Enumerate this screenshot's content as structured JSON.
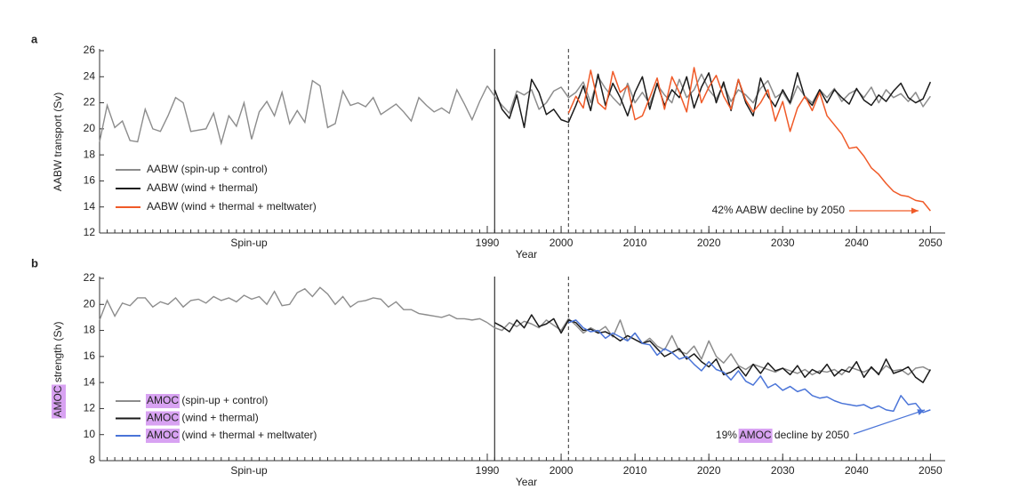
{
  "chart_data": [
    {
      "type": "line",
      "panel_label": "a",
      "ylabel": "AABW transport (Sv)",
      "xlabel": "Year",
      "spinup_label": "Spin-up",
      "x": [
        1991,
        1992,
        1993,
        1994,
        1995,
        1996,
        1997,
        1998,
        1999,
        2000,
        2001,
        2002,
        2003,
        2004,
        2005,
        2006,
        2007,
        2008,
        2009,
        2010,
        2011,
        2012,
        2013,
        2014,
        2015,
        2016,
        2017,
        2018,
        2019,
        2020,
        2021,
        2022,
        2023,
        2024,
        2025,
        2026,
        2027,
        2028,
        2029,
        2030,
        2031,
        2032,
        2033,
        2034,
        2035,
        2036,
        2037,
        2038,
        2039,
        2040,
        2041,
        2042,
        2043,
        2044,
        2045,
        2046,
        2047,
        2048,
        2049,
        2050
      ],
      "xlim": [
        1990,
        2052
      ],
      "xticks": [
        1990,
        2000,
        2010,
        2020,
        2030,
        2040,
        2050
      ],
      "ylim": [
        12,
        26
      ],
      "yticks": [
        12,
        14,
        16,
        18,
        20,
        22,
        24,
        26
      ],
      "vlines": [
        {
          "value": 1991,
          "style": "solid"
        },
        {
          "value": 2001,
          "style": "dashed"
        }
      ],
      "series": [
        {
          "name": "AABW (spin-up + control)",
          "color": "#8c8c8c",
          "spinup_values": [
            19.0,
            21.8,
            20.1,
            20.6,
            19.1,
            19.0,
            21.5,
            20.0,
            19.8,
            21.0,
            22.4,
            22.0,
            19.8,
            19.9,
            20.0,
            21.2,
            18.9,
            21.0,
            20.2,
            22.0,
            19.2,
            21.3,
            22.1,
            21.0,
            22.8,
            20.4,
            21.4,
            20.5,
            23.7,
            23.3,
            20.1,
            20.4,
            22.9,
            21.8,
            22.0,
            21.7,
            22.4,
            21.1,
            21.5,
            21.9,
            21.3,
            20.6,
            22.4,
            21.8,
            21.3,
            21.6,
            21.2,
            23.0,
            21.9,
            20.7,
            22.1,
            23.3
          ],
          "values": [
            22.5,
            21.8,
            21.2,
            22.9,
            22.6,
            23.0,
            21.5,
            22.0,
            22.9,
            23.2,
            22.4,
            22.8,
            23.6,
            22.0,
            24.0,
            23.1,
            22.4,
            21.8,
            23.5,
            22.0,
            22.8,
            21.9,
            23.4,
            22.6,
            22.0,
            23.8,
            22.4,
            23.0,
            24.2,
            23.0,
            22.3,
            23.4,
            22.1,
            23.0,
            22.6,
            22.0,
            23.1,
            23.7,
            22.4,
            22.8,
            21.9,
            23.3,
            22.5,
            22.0,
            23.0,
            22.4,
            23.1,
            22.1,
            22.7,
            23.0,
            22.4,
            23.2,
            22.0,
            23.0,
            22.4,
            22.7,
            22.1,
            22.8,
            21.7,
            22.5
          ]
        },
        {
          "name": "AABW (wind + thermal)",
          "color": "#1a1a1a",
          "values": [
            23.0,
            21.5,
            20.8,
            22.6,
            20.1,
            23.8,
            22.8,
            21.1,
            21.5,
            20.7,
            20.5,
            21.8,
            23.3,
            21.4,
            24.2,
            21.8,
            23.5,
            22.4,
            21.0,
            22.8,
            24.0,
            21.5,
            23.5,
            21.8,
            23.0,
            22.4,
            24.0,
            21.6,
            23.2,
            24.3,
            22.0,
            23.6,
            21.4,
            23.8,
            22.0,
            21.0,
            23.9,
            22.5,
            21.7,
            23.0,
            22.0,
            24.3,
            22.4,
            21.8,
            23.0,
            22.0,
            23.0,
            22.4,
            21.9,
            23.1,
            22.2,
            21.8,
            22.6,
            22.1,
            22.9,
            23.5,
            22.4,
            22.0,
            22.3,
            23.6
          ]
        },
        {
          "name": "AABW (wind + thermal + meltwater)",
          "color": "#f05a28",
          "values": [
            null,
            null,
            null,
            null,
            null,
            null,
            null,
            null,
            null,
            null,
            21.2,
            22.5,
            21.6,
            24.5,
            22.0,
            21.5,
            24.4,
            22.8,
            23.3,
            20.7,
            21.0,
            22.4,
            23.9,
            21.5,
            24.0,
            22.8,
            21.3,
            24.7,
            22.0,
            23.2,
            24.1,
            22.5,
            21.5,
            23.8,
            22.2,
            21.3,
            22.0,
            23.0,
            20.6,
            22.1,
            19.8,
            21.6,
            22.5,
            21.4,
            22.8,
            21.0,
            20.3,
            19.6,
            18.5,
            18.6,
            17.9,
            17.0,
            16.5,
            15.8,
            15.2,
            14.9,
            14.8,
            14.5,
            14.4,
            13.7
          ]
        }
      ],
      "annotation": {
        "text": "42% AABW decline by 2050",
        "color": "#f05a28"
      }
    },
    {
      "type": "line",
      "panel_label": "b",
      "ylabel": "AMOC strength (Sv)",
      "xlabel": "Year",
      "spinup_label": "Spin-up",
      "highlight": "AMOC",
      "highlight_color": "#d8a2f2",
      "x": [
        1991,
        1992,
        1993,
        1994,
        1995,
        1996,
        1997,
        1998,
        1999,
        2000,
        2001,
        2002,
        2003,
        2004,
        2005,
        2006,
        2007,
        2008,
        2009,
        2010,
        2011,
        2012,
        2013,
        2014,
        2015,
        2016,
        2017,
        2018,
        2019,
        2020,
        2021,
        2022,
        2023,
        2024,
        2025,
        2026,
        2027,
        2028,
        2029,
        2030,
        2031,
        2032,
        2033,
        2034,
        2035,
        2036,
        2037,
        2038,
        2039,
        2040,
        2041,
        2042,
        2043,
        2044,
        2045,
        2046,
        2047,
        2048,
        2049,
        2050
      ],
      "xlim": [
        1990,
        2052
      ],
      "xticks": [
        1990,
        2000,
        2010,
        2020,
        2030,
        2040,
        2050
      ],
      "ylim": [
        8,
        22
      ],
      "yticks": [
        8,
        10,
        12,
        14,
        16,
        18,
        20,
        22
      ],
      "vlines": [
        {
          "value": 1991,
          "style": "solid"
        },
        {
          "value": 2001,
          "style": "dashed"
        }
      ],
      "series": [
        {
          "name": "AMOC (spin-up + control)",
          "color": "#8c8c8c",
          "spinup_values": [
            18.8,
            20.3,
            19.1,
            20.1,
            19.9,
            20.5,
            20.5,
            19.8,
            20.2,
            20.0,
            20.5,
            19.8,
            20.3,
            20.4,
            20.1,
            20.6,
            20.3,
            20.5,
            20.2,
            20.7,
            20.4,
            20.6,
            20.0,
            21.0,
            19.9,
            20.0,
            20.9,
            21.2,
            20.6,
            21.3,
            20.8,
            20.0,
            20.6,
            19.8,
            20.2,
            20.3,
            20.5,
            20.4,
            19.8,
            20.2,
            19.6,
            19.6,
            19.3,
            19.2,
            19.1,
            19.0,
            19.2,
            18.9,
            18.9,
            18.8,
            18.9,
            18.6
          ],
          "values": [
            18.2,
            18.0,
            18.6,
            18.3,
            18.7,
            18.5,
            18.2,
            18.8,
            18.4,
            18.0,
            18.9,
            18.4,
            17.8,
            18.2,
            17.9,
            18.3,
            17.5,
            18.8,
            17.2,
            17.8,
            17.0,
            17.4,
            16.8,
            16.5,
            17.6,
            16.4,
            16.2,
            16.8,
            15.8,
            17.2,
            16.0,
            15.5,
            16.2,
            15.3,
            15.0,
            15.4,
            15.2,
            15.0,
            14.8,
            15.1,
            14.9,
            14.7,
            15.0,
            14.6,
            14.9,
            14.8,
            15.0,
            14.6,
            15.2,
            15.0,
            14.8,
            15.1,
            14.7,
            15.3,
            14.9,
            15.0,
            14.6,
            15.1,
            15.2,
            14.9
          ]
        },
        {
          "name": "AMOC (wind + thermal)",
          "color": "#1a1a1a",
          "values": [
            18.6,
            18.3,
            17.9,
            18.8,
            18.2,
            19.2,
            18.3,
            18.5,
            18.9,
            17.8,
            18.8,
            18.6,
            18.0,
            18.1,
            17.8,
            17.9,
            17.6,
            17.2,
            17.6,
            17.3,
            17.0,
            17.2,
            16.6,
            16.0,
            16.3,
            16.6,
            15.8,
            16.2,
            15.6,
            15.2,
            15.8,
            14.6,
            14.8,
            15.2,
            14.5,
            15.4,
            14.7,
            15.5,
            14.9,
            15.1,
            14.6,
            15.3,
            14.4,
            15.0,
            14.7,
            15.4,
            14.5,
            15.0,
            14.8,
            15.6,
            14.4,
            15.2,
            14.6,
            15.8,
            14.7,
            14.9,
            15.2,
            14.4,
            14.0,
            15.0
          ]
        },
        {
          "name": "AMOC (wind + thermal + meltwater)",
          "color": "#4a74d8",
          "values": [
            null,
            null,
            null,
            null,
            null,
            null,
            null,
            null,
            null,
            null,
            18.6,
            18.8,
            18.2,
            17.9,
            18.0,
            17.4,
            17.8,
            17.5,
            17.2,
            17.8,
            17.0,
            16.9,
            16.1,
            16.6,
            16.3,
            15.8,
            16.0,
            15.4,
            14.9,
            15.6,
            15.0,
            14.8,
            14.2,
            14.9,
            14.1,
            13.8,
            14.5,
            13.6,
            13.9,
            13.4,
            13.7,
            13.3,
            13.5,
            13.0,
            12.8,
            12.9,
            12.6,
            12.4,
            12.3,
            12.2,
            12.3,
            12.0,
            12.2,
            11.9,
            11.8,
            13.0,
            12.3,
            12.4,
            11.7,
            11.9
          ]
        }
      ],
      "annotation": {
        "text": "19% AMOC decline by 2050",
        "color": "#4a74d8"
      }
    }
  ]
}
